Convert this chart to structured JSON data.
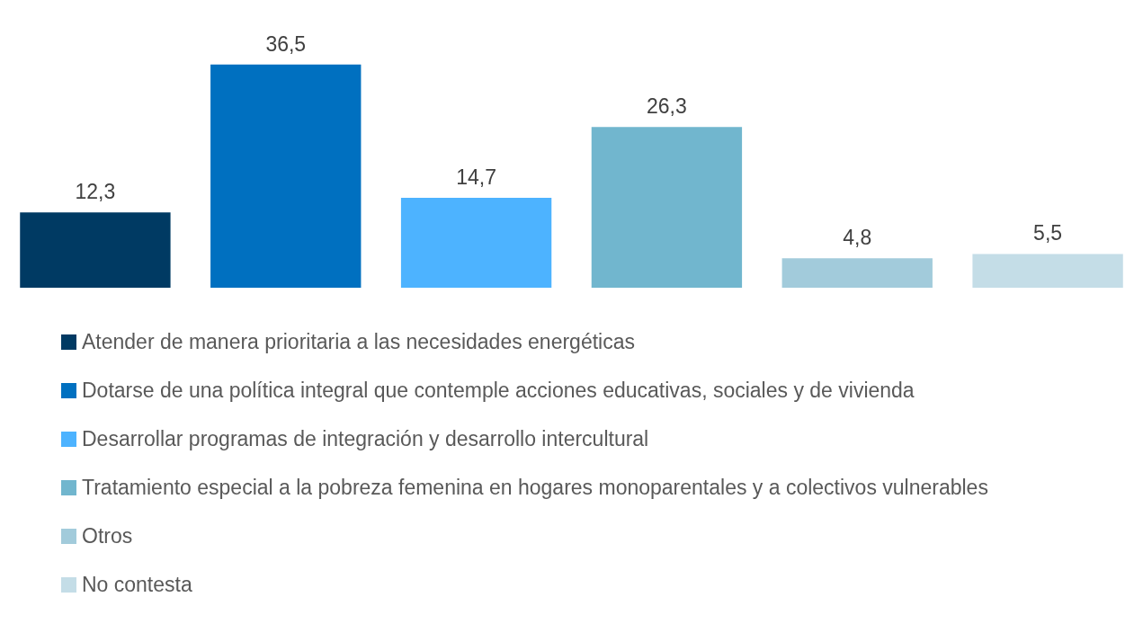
{
  "chart_data": {
    "type": "bar",
    "categories": [
      null,
      null,
      null,
      null,
      null,
      null
    ],
    "stacked": true,
    "series": [
      {
        "name": "Atender de manera prioritaria a las necesidades energéticas",
        "color": "#003a63",
        "values": [
          12.3,
          null,
          null,
          null,
          null,
          null
        ],
        "value_labels": [
          "12,3",
          null,
          null,
          null,
          null,
          null
        ]
      },
      {
        "name": "Dotarse de una política integral que contemple acciones educativas, sociales y de vivienda",
        "color": "#0070c0",
        "values": [
          null,
          36.5,
          null,
          null,
          null,
          null
        ],
        "value_labels": [
          null,
          "36,5",
          null,
          null,
          null,
          null
        ]
      },
      {
        "name": "Desarrollar programas de integración y desarrollo intercultural",
        "color": "#4db3ff",
        "values": [
          null,
          null,
          14.7,
          null,
          null,
          null
        ],
        "value_labels": [
          null,
          null,
          "14,7",
          null,
          null,
          null
        ]
      },
      {
        "name": "Tratamiento especial a la pobreza femenina en hogares monoparentales y a colectivos vulnerables",
        "color": "#71b6ce",
        "values": [
          null,
          null,
          null,
          26.3,
          null,
          null
        ],
        "value_labels": [
          null,
          null,
          null,
          "26,3",
          null,
          null
        ]
      },
      {
        "name": "Otros",
        "color": "#a2cbdb",
        "values": [
          null,
          null,
          null,
          null,
          4.8,
          null
        ],
        "value_labels": [
          null,
          null,
          null,
          null,
          "4,8",
          null
        ]
      },
      {
        "name": "No contesta",
        "color": "#c4dde7",
        "values": [
          null,
          null,
          null,
          null,
          null,
          5.5
        ],
        "value_labels": [
          null,
          null,
          null,
          null,
          null,
          "5,5"
        ]
      }
    ],
    "grid": false,
    "legend": "bottom"
  }
}
